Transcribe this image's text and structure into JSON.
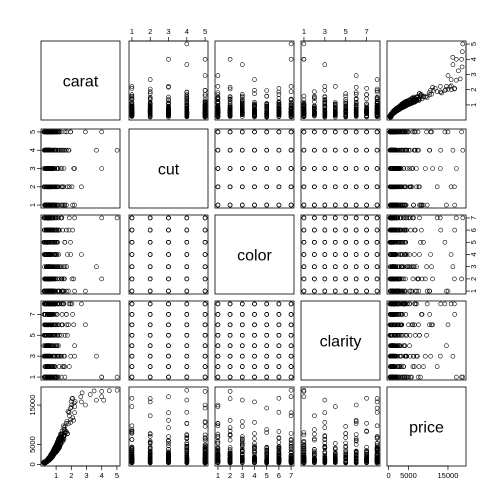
{
  "chart_data": {
    "type": "scatter_matrix",
    "variables": [
      "carat",
      "cut",
      "color",
      "clarity",
      "price"
    ],
    "ranges": {
      "carat": [
        0.2,
        5.01
      ],
      "cut": [
        1,
        5
      ],
      "color": [
        1,
        7
      ],
      "clarity": [
        1,
        8
      ],
      "price": [
        326,
        18823
      ]
    },
    "tick_labels": {
      "carat": [
        "1",
        "2",
        "3",
        "4",
        "5"
      ],
      "cut": [
        "1",
        "2",
        "3",
        "4",
        "5"
      ],
      "color": [
        "1",
        "2",
        "3",
        "4",
        "5",
        "6",
        "7"
      ],
      "clarity": [
        "1",
        "3",
        "5",
        "7"
      ],
      "price": [
        "0",
        "5000",
        "15000"
      ]
    },
    "top_axis": {
      "cut": [
        "1",
        "2",
        "3",
        "4",
        "5"
      ],
      "clarity": [
        "1",
        "3",
        "5",
        "7"
      ]
    },
    "bottom_axis": {
      "carat": [
        "1",
        "2",
        "3",
        "4",
        "5"
      ],
      "color": [
        "1",
        "2",
        "3",
        "4",
        "5",
        "6",
        "7"
      ],
      "price": [
        "0",
        "5000",
        "15000"
      ]
    },
    "left_axis": {
      "cut": [
        "1",
        "2",
        "3",
        "4",
        "5"
      ],
      "clarity": [
        "1",
        "3",
        "5",
        "7"
      ],
      "price": [
        "0",
        "5000",
        "15000"
      ]
    },
    "right_axis": {
      "carat": [
        "1",
        "2",
        "3",
        "4",
        "5"
      ],
      "color": [
        "1",
        "2",
        "3",
        "4",
        "5",
        "6",
        "7"
      ]
    },
    "grid": false,
    "legend": "none",
    "point_style": "open-circle"
  }
}
